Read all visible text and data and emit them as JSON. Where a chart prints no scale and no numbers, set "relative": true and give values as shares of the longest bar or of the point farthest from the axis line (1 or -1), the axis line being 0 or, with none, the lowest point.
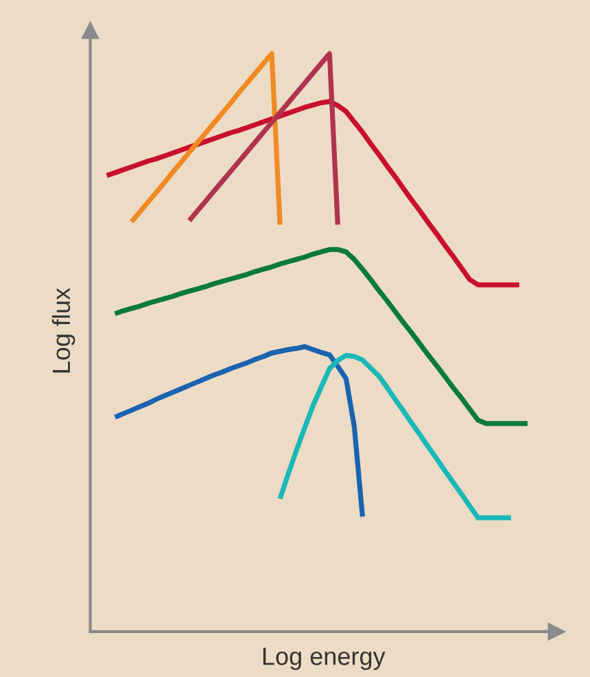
{
  "chart_data": {
    "type": "line",
    "relative": true,
    "xlabel": "Log energy",
    "ylabel": "Log flux",
    "tick_labels": false,
    "legend": false,
    "marker": "none",
    "line_style": "solid",
    "categories": [
      null,
      null,
      null,
      null,
      null,
      null,
      null,
      null,
      null,
      null,
      null,
      null,
      null,
      null,
      null,
      null,
      null,
      null,
      null,
      null,
      null,
      null,
      null,
      null,
      null,
      null,
      null,
      null,
      null,
      null,
      null,
      null,
      null,
      null,
      null,
      null,
      null,
      null,
      null,
      null,
      null,
      null,
      null,
      null,
      null,
      null,
      null,
      null,
      null,
      null,
      null,
      null
    ],
    "series": [
      {
        "color": "#c8102e",
        "values": [
          0.789,
          0.794,
          0.799,
          0.804,
          0.809,
          0.814,
          0.818,
          0.823,
          0.828,
          0.833,
          0.838,
          0.843,
          0.848,
          0.853,
          0.858,
          0.863,
          0.867,
          0.872,
          0.877,
          0.882,
          0.887,
          0.892,
          0.897,
          0.902,
          0.907,
          0.911,
          0.915,
          0.917,
          0.91,
          0.9,
          0.882,
          0.864,
          0.844,
          0.825,
          0.805,
          0.786,
          0.766,
          0.746,
          0.727,
          0.707,
          0.688,
          0.668,
          0.649,
          0.629,
          0.609,
          0.6,
          0.6,
          0.6,
          0.6,
          0.6,
          0.6,
          null
        ]
      },
      {
        "color": "#f08a24",
        "values": [
          null,
          null,
          null,
          0.709,
          0.726,
          0.743,
          0.76,
          0.777,
          0.795,
          0.812,
          0.829,
          0.846,
          0.863,
          0.88,
          0.897,
          0.914,
          0.932,
          0.949,
          0.966,
          0.983,
          1.0,
          0.704,
          null,
          null,
          null,
          null,
          null,
          null,
          null,
          null,
          null,
          null,
          null,
          null,
          null,
          null,
          null,
          null,
          null,
          null,
          null,
          null,
          null,
          null,
          null,
          null,
          null,
          null,
          null,
          null,
          null,
          null
        ]
      },
      {
        "color": "#b0334f",
        "values": [
          null,
          null,
          null,
          null,
          null,
          null,
          null,
          null,
          null,
          null,
          0.711,
          0.728,
          0.745,
          0.762,
          0.779,
          0.796,
          0.813,
          0.83,
          0.847,
          0.864,
          0.881,
          0.898,
          0.915,
          0.932,
          0.949,
          0.966,
          0.983,
          1.0,
          0.704,
          null,
          null,
          null,
          null,
          null,
          null,
          null,
          null,
          null,
          null,
          null,
          null,
          null,
          null,
          null,
          null,
          null,
          null,
          null,
          null,
          null,
          null,
          null
        ]
      },
      {
        "color": "#0a7a3a",
        "values": [
          null,
          0.55,
          0.555,
          0.559,
          0.563,
          0.568,
          0.572,
          0.576,
          0.58,
          0.585,
          0.589,
          0.593,
          0.597,
          0.602,
          0.606,
          0.61,
          0.614,
          0.618,
          0.623,
          0.627,
          0.631,
          0.636,
          0.64,
          0.644,
          0.648,
          0.653,
          0.657,
          0.661,
          0.661,
          0.657,
          0.644,
          0.627,
          0.609,
          0.59,
          0.572,
          0.553,
          0.534,
          0.516,
          0.497,
          0.478,
          0.46,
          0.441,
          0.422,
          0.404,
          0.385,
          0.366,
          0.36,
          0.36,
          0.36,
          0.36,
          0.36,
          0.36
        ]
      },
      {
        "color": "#1a63b0",
        "values": [
          null,
          0.371,
          0.377,
          0.383,
          0.389,
          0.395,
          0.402,
          0.408,
          0.414,
          0.42,
          0.426,
          0.432,
          0.438,
          0.444,
          0.449,
          0.455,
          0.46,
          0.465,
          0.471,
          0.476,
          0.482,
          0.485,
          0.488,
          0.49,
          0.493,
          0.488,
          0.483,
          0.479,
          0.459,
          0.438,
          0.355,
          0.199,
          null,
          null,
          null,
          null,
          null,
          null,
          null,
          null,
          null,
          null,
          null,
          null,
          null,
          null,
          null,
          null,
          null,
          null,
          null,
          null
        ]
      },
      {
        "color": "#1ab8b8",
        "values": [
          null,
          null,
          null,
          null,
          null,
          null,
          null,
          null,
          null,
          null,
          null,
          null,
          null,
          null,
          null,
          null,
          null,
          null,
          null,
          null,
          null,
          0.23,
          0.273,
          0.314,
          0.353,
          0.391,
          0.423,
          0.455,
          0.469,
          0.478,
          0.476,
          0.47,
          0.456,
          0.442,
          0.422,
          0.401,
          0.381,
          0.36,
          0.34,
          0.319,
          0.299,
          0.278,
          0.258,
          0.238,
          0.217,
          0.197,
          0.197,
          0.197,
          0.197,
          0.197,
          null,
          null
        ]
      }
    ]
  }
}
